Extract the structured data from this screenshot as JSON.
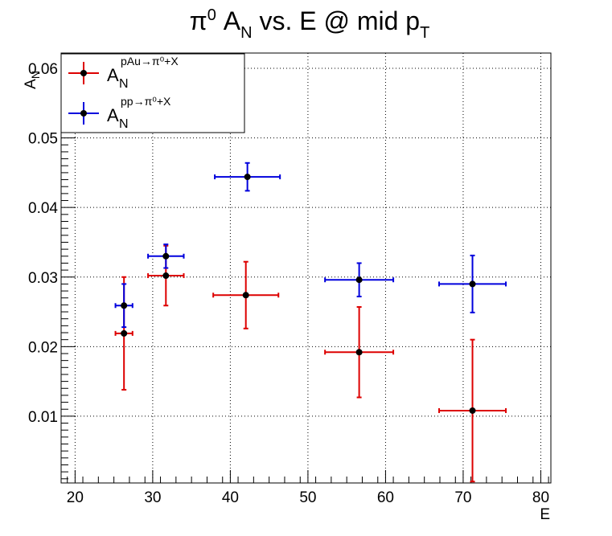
{
  "chart_data": {
    "type": "scatter",
    "title": {
      "base": "π",
      "base_sup": "0",
      "mid": " A",
      "mid_sub": "N",
      "rest": " vs. E @ mid p",
      "rest_sub": "T"
    },
    "xlabel": "E",
    "ylabel": "A",
    "ylabel_sub": "N",
    "xlim": [
      18.2,
      81.3
    ],
    "ylim": [
      0.0004,
      0.0622
    ],
    "x_ticks": [
      20,
      30,
      40,
      50,
      60,
      70,
      80
    ],
    "x_tick_labels": [
      "20",
      "30",
      "40",
      "50",
      "60",
      "70",
      "80"
    ],
    "y_ticks": [
      0.01,
      0.02,
      0.03,
      0.04,
      0.05,
      0.06
    ],
    "y_tick_labels": [
      "0.01",
      "0.02",
      "0.03",
      "0.04",
      "0.05",
      "0.06"
    ],
    "grid": true,
    "legend_position": "top-left",
    "series": [
      {
        "label_base": "A",
        "label_sub": "N",
        "label_sup": "pAu→π⁰+X",
        "color": "#dd0000",
        "points": [
          {
            "x": 26.3,
            "y": 0.0219,
            "xerr": 1.1,
            "yerr": 0.0081
          },
          {
            "x": 31.7,
            "y": 0.0302,
            "xerr": 2.3,
            "yerr": 0.0043
          },
          {
            "x": 42.0,
            "y": 0.0274,
            "xerr": 4.2,
            "yerr": 0.0048
          },
          {
            "x": 56.6,
            "y": 0.0192,
            "xerr": 4.4,
            "yerr": 0.0065
          },
          {
            "x": 71.2,
            "y": 0.0108,
            "xerr": 4.3,
            "yerr": 0.0102
          }
        ]
      },
      {
        "label_base": "A",
        "label_sub": "N",
        "label_sup": "pp→π⁰+X",
        "color": "#0000dd",
        "points": [
          {
            "x": 26.3,
            "y": 0.0259,
            "xerr": 1.1,
            "yerr": 0.0031
          },
          {
            "x": 31.7,
            "y": 0.033,
            "xerr": 2.3,
            "yerr": 0.0017
          },
          {
            "x": 42.2,
            "y": 0.0444,
            "xerr": 4.2,
            "yerr": 0.002
          },
          {
            "x": 56.6,
            "y": 0.0296,
            "xerr": 4.4,
            "yerr": 0.0024
          },
          {
            "x": 71.2,
            "y": 0.029,
            "xerr": 4.3,
            "yerr": 0.0041
          }
        ]
      }
    ]
  }
}
